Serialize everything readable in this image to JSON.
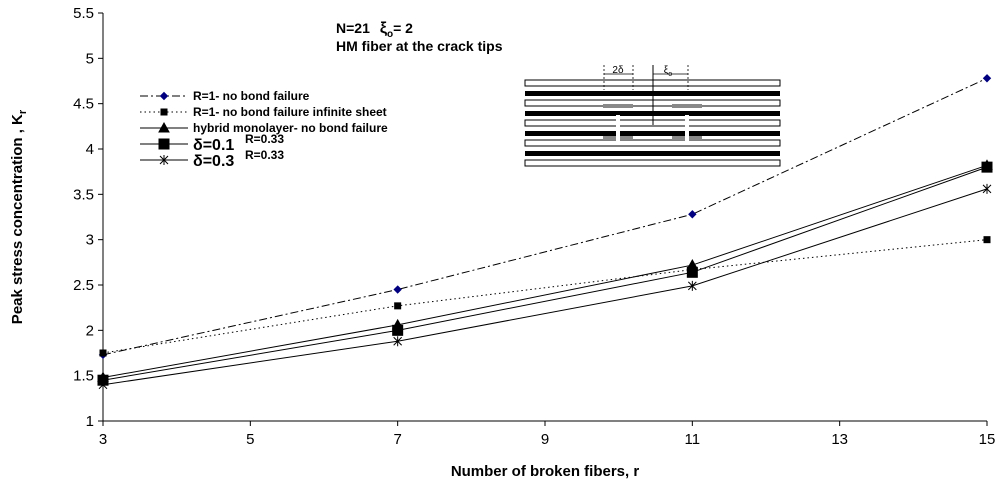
{
  "chart_data": {
    "type": "line",
    "x_label": "Number of broken fibers, r",
    "y_label": "Peak stress concentration , K",
    "y_label_sub": "r",
    "annotations": [
      "N=21",
      "ξ",
      "o",
      "= 2",
      "HM fiber at the crack tips"
    ],
    "inset_labels": [
      "2δ",
      "ξ",
      "o"
    ],
    "x": [
      3,
      7,
      11,
      15
    ],
    "xlim": [
      3,
      15
    ],
    "xticks": [
      3,
      5,
      7,
      9,
      11,
      13,
      15
    ],
    "ylim": [
      1,
      5.5
    ],
    "yticks": [
      1,
      1.5,
      2,
      2.5,
      3,
      3.5,
      4,
      4.5,
      5,
      5.5
    ],
    "grid": false,
    "series": [
      {
        "name": "R=1- no bond failure",
        "color": "#000080",
        "line_color": "#000000",
        "dash": "dashdot",
        "marker": "diamond",
        "values": [
          1.73,
          2.45,
          3.28,
          4.78
        ]
      },
      {
        "name": "R=1- no bond failure infinite sheet",
        "color": "#000000",
        "line_color": "#000000",
        "dash": "dotted",
        "marker": "square-small",
        "values": [
          1.75,
          2.27,
          2.67,
          3.0
        ]
      },
      {
        "name": "hybrid monolayer- no bond failure",
        "color": "#000000",
        "line_color": "#000000",
        "dash": "solid",
        "marker": "triangle",
        "values": [
          1.48,
          2.06,
          2.72,
          3.82
        ]
      },
      {
        "name": "δ=0.1",
        "note": "R=0.33",
        "color": "#000000",
        "line_color": "#000000",
        "dash": "solid",
        "marker": "square",
        "values": [
          1.45,
          2.0,
          2.64,
          3.8
        ]
      },
      {
        "name": "δ=0.3",
        "note": "R=0.33",
        "color": "#000000",
        "line_color": "#000000",
        "dash": "solid",
        "marker": "star",
        "values": [
          1.4,
          1.88,
          2.49,
          3.56
        ]
      }
    ]
  }
}
